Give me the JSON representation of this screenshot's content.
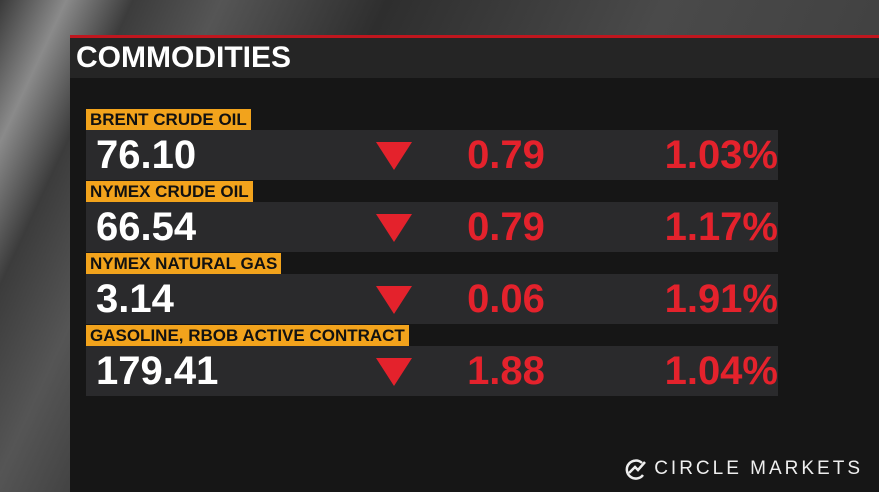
{
  "header": {
    "title": "COMMODITIES"
  },
  "rows": [
    {
      "name": "BRENT CRUDE OIL",
      "price": "76.10",
      "change": "0.79",
      "percent": "1.03%"
    },
    {
      "name": "NYMEX CRUDE OIL",
      "price": "66.54",
      "change": "0.79",
      "percent": "1.17%"
    },
    {
      "name": "NYMEX NATURAL GAS",
      "price": "3.14",
      "change": "0.06",
      "percent": "1.91%"
    },
    {
      "name": "GASOLINE, RBOB ACTIVE CONTRACT",
      "price": "179.41",
      "change": "1.88",
      "percent": "1.04%"
    }
  ],
  "logo": "CIRCLE MARKETS"
}
